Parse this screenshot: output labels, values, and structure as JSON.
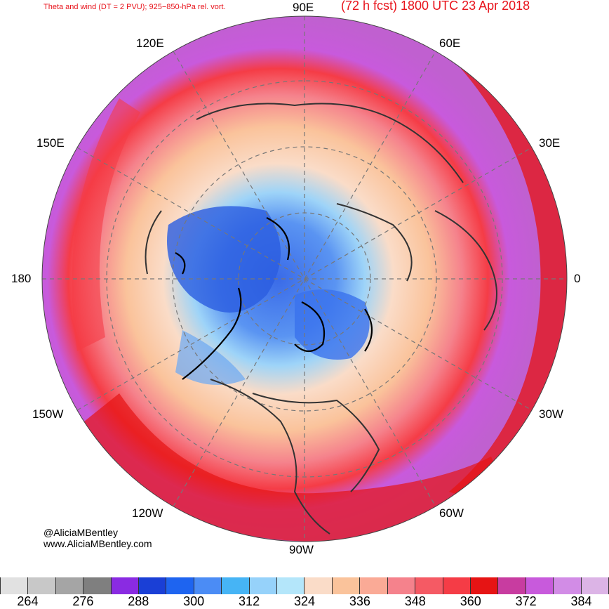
{
  "header": {
    "title_left": "Theta and wind (DT = 2 PVU); 925−850-hPa rel. vort.",
    "title_right": "(72 h fcst) 1800 UTC 23 Apr 2018"
  },
  "map": {
    "projection": "north-polar-stereographic",
    "longitude_labels": {
      "top": "90E",
      "upper_left": "120E",
      "upper_right": "60E",
      "left_upper": "150E",
      "right_upper": "30E",
      "left": "180",
      "right": "0",
      "left_lower": "150W",
      "right_lower": "30W",
      "lower_left": "120W",
      "lower_right": "60W",
      "bottom": "90W"
    }
  },
  "credits": {
    "handle": "@AliciaMBentley",
    "site": "www.AliciaMBentley.com"
  },
  "colorbar": {
    "colors": [
      "#e1e1e1",
      "#c8c8c8",
      "#a5a5a5",
      "#7f7f7f",
      "#8a2be2",
      "#1a3fd6",
      "#1e64f0",
      "#4b8cf5",
      "#46b4f5",
      "#96d2fa",
      "#b4e6fa",
      "#fadcc8",
      "#fac39b",
      "#faaa96",
      "#f5828c",
      "#f55a64",
      "#f53c46",
      "#e61414",
      "#c83ca0",
      "#c85adc",
      "#d28ce6",
      "#dcb4e6"
    ],
    "tick_labels": [
      "264",
      "276",
      "288",
      "300",
      "312",
      "324",
      "336",
      "348",
      "360",
      "372",
      "384"
    ]
  }
}
